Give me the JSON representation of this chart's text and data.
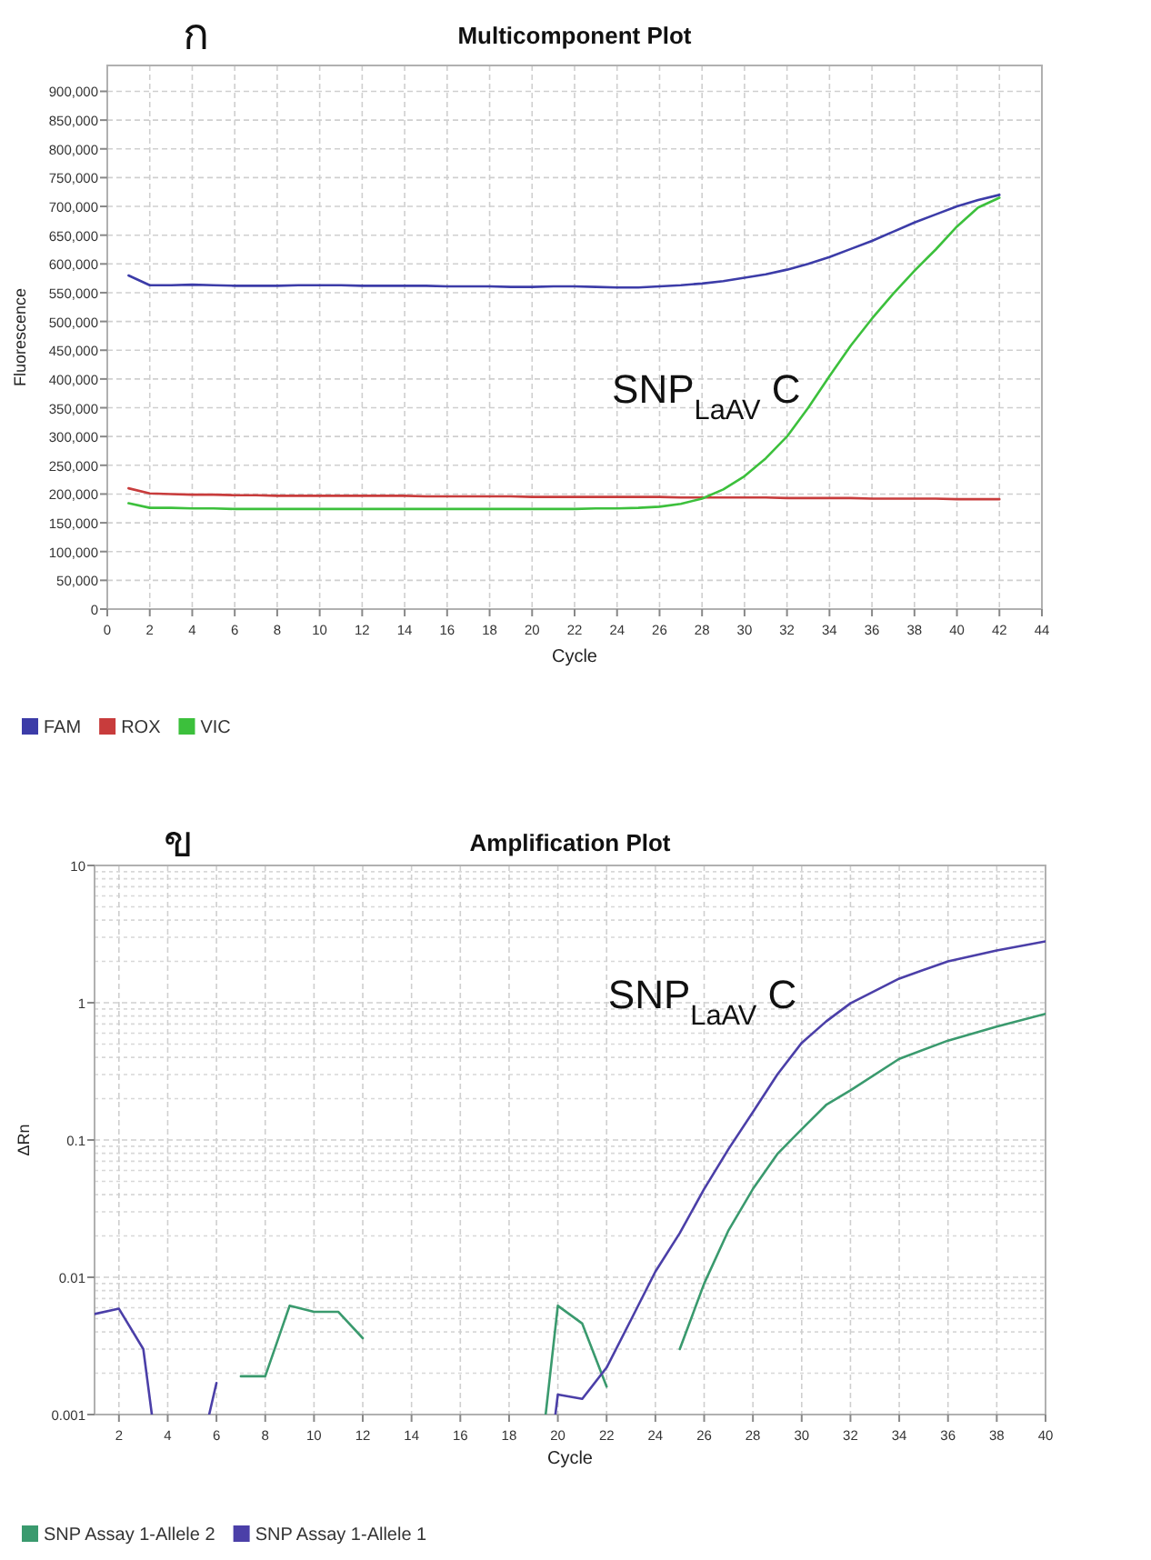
{
  "chart_data": [
    {
      "type": "line",
      "title": "Multicomponent Plot",
      "xlabel": "Cycle",
      "ylabel": "Fluorescence",
      "annotations": [
        "ก",
        "SNP$_{LaAV}$ C"
      ],
      "x": [
        1,
        2,
        3,
        4,
        5,
        6,
        7,
        8,
        9,
        10,
        11,
        12,
        13,
        14,
        15,
        16,
        17,
        18,
        19,
        20,
        21,
        22,
        23,
        24,
        25,
        26,
        27,
        28,
        29,
        30,
        31,
        32,
        33,
        34,
        35,
        36,
        37,
        38,
        39,
        40,
        41,
        42
      ],
      "series": [
        {
          "name": "FAM",
          "color": "#3c3ca8",
          "values": [
            580000,
            563000,
            563000,
            564000,
            563000,
            562000,
            562000,
            562000,
            563000,
            563000,
            563000,
            562000,
            562000,
            562000,
            562000,
            561000,
            561000,
            561000,
            560000,
            560000,
            561000,
            561000,
            560000,
            559000,
            559000,
            561000,
            563000,
            566000,
            570000,
            576000,
            582000,
            590000,
            600000,
            612000,
            626000,
            640000,
            656000,
            672000,
            686000,
            700000,
            711000,
            720000
          ]
        },
        {
          "name": "ROX",
          "color": "#c83c3c",
          "values": [
            210000,
            201000,
            200000,
            199000,
            199000,
            198000,
            198000,
            197000,
            197000,
            197000,
            197000,
            197000,
            197000,
            197000,
            196000,
            196000,
            196000,
            196000,
            196000,
            195000,
            195000,
            195000,
            195000,
            195000,
            195000,
            195000,
            194000,
            194000,
            194000,
            194000,
            194000,
            193000,
            193000,
            193000,
            193000,
            192000,
            192000,
            192000,
            192000,
            191000,
            191000,
            191000
          ]
        },
        {
          "name": "VIC",
          "color": "#3cc03c",
          "values": [
            184000,
            176000,
            176000,
            175000,
            175000,
            174000,
            174000,
            174000,
            174000,
            174000,
            174000,
            174000,
            174000,
            174000,
            174000,
            174000,
            174000,
            174000,
            174000,
            174000,
            174000,
            174000,
            175000,
            175000,
            176000,
            178000,
            183000,
            192000,
            208000,
            231000,
            262000,
            300000,
            350000,
            405000,
            458000,
            505000,
            548000,
            588000,
            625000,
            665000,
            698000,
            715000
          ]
        }
      ],
      "xlim": [
        0,
        44
      ],
      "xticks": [
        0,
        2,
        4,
        6,
        8,
        10,
        12,
        14,
        16,
        18,
        20,
        22,
        24,
        26,
        28,
        30,
        32,
        34,
        36,
        38,
        40,
        42,
        44
      ],
      "ylim": [
        0,
        945000
      ],
      "yticks": [
        {
          "value": 0,
          "label": "0"
        },
        {
          "value": 50000,
          "label": "50,000"
        },
        {
          "value": 100000,
          "label": "100,000"
        },
        {
          "value": 150000,
          "label": "150,000"
        },
        {
          "value": 200000,
          "label": "200,000"
        },
        {
          "value": 250000,
          "label": "250,000"
        },
        {
          "value": 300000,
          "label": "300,000"
        },
        {
          "value": 350000,
          "label": "350,000"
        },
        {
          "value": 400000,
          "label": "400,000"
        },
        {
          "value": 450000,
          "label": "450,000"
        },
        {
          "value": 500000,
          "label": "500,000"
        },
        {
          "value": 550000,
          "label": "550,000"
        },
        {
          "value": 600000,
          "label": "600,000"
        },
        {
          "value": 650000,
          "label": "650,000"
        },
        {
          "value": 700000,
          "label": "700,000"
        },
        {
          "value": 750000,
          "label": "750,000"
        },
        {
          "value": 800000,
          "label": "800,000"
        },
        {
          "value": 850000,
          "label": "850,000"
        },
        {
          "value": 900000,
          "label": "900,000"
        }
      ],
      "grid": true,
      "legend": "bottom"
    },
    {
      "type": "line",
      "title": "Amplification Plot",
      "xlabel": "Cycle",
      "ylabel": "ΔRn",
      "annotations": [
        "ข",
        "SNP$_{LaAV}$ C"
      ],
      "log": true,
      "series": [
        {
          "name": "SNP Assay 1-Allele 2",
          "color": "#3a9a6e",
          "x": [
            7,
            8,
            9,
            10,
            11,
            12,
            null,
            19.5,
            20,
            21,
            22,
            null,
            25,
            26,
            27,
            28,
            29,
            30,
            31,
            32,
            34,
            36,
            38,
            40
          ],
          "values": [
            0.0019,
            0.0019,
            0.0062,
            0.0056,
            0.0056,
            0.0036,
            null,
            0.001,
            0.0062,
            0.0046,
            0.0016,
            null,
            0.003,
            0.009,
            0.022,
            0.044,
            0.079,
            0.12,
            0.18,
            0.23,
            0.39,
            0.53,
            0.67,
            0.83
          ]
        },
        {
          "name": "SNP Assay 1-Allele 1",
          "color": "#4b3fa8",
          "x": [
            1,
            2,
            3,
            3.35,
            null,
            5.7,
            6,
            null,
            19.9,
            20,
            21,
            22,
            23,
            24,
            25,
            26,
            27,
            28,
            29,
            30,
            31,
            32,
            34,
            36,
            38,
            40
          ],
          "values": [
            0.0054,
            0.0059,
            0.003,
            0.001,
            null,
            0.001,
            0.0017,
            null,
            0.001,
            0.0014,
            0.0013,
            0.0022,
            0.0049,
            0.011,
            0.021,
            0.044,
            0.086,
            0.16,
            0.3,
            0.51,
            0.73,
            0.99,
            1.5,
            2,
            2.4,
            2.8
          ]
        }
      ],
      "xlim": [
        1,
        40
      ],
      "xticks": [
        2,
        4,
        6,
        8,
        10,
        12,
        14,
        16,
        18,
        20,
        22,
        24,
        26,
        28,
        30,
        32,
        34,
        36,
        38,
        40
      ],
      "ylim": [
        0.001,
        10
      ],
      "yticks": [
        0.001,
        0.01,
        0.1,
        1,
        10
      ],
      "grid": true,
      "legend": "bottom"
    }
  ]
}
